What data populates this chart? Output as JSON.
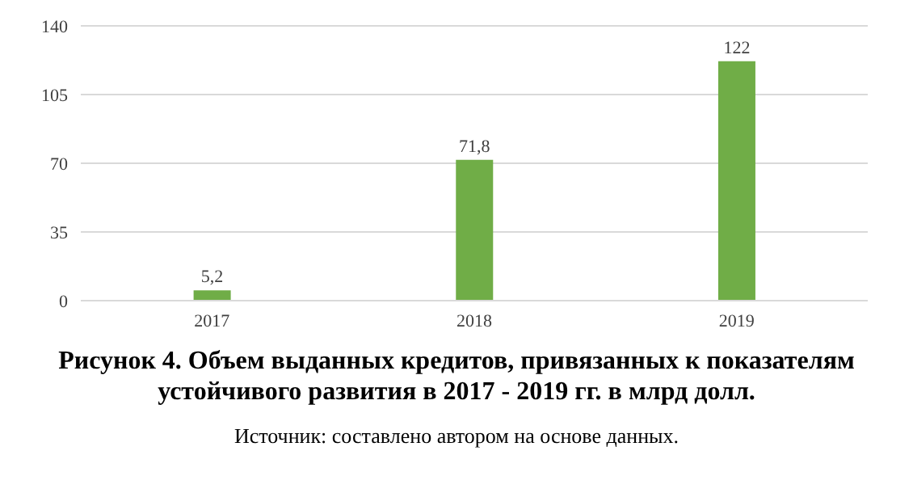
{
  "chart_data": {
    "type": "bar",
    "title": "Рисунок 4. Объем выданных кредитов, привязанных к показателям устойчивого развития в 2017 - 2019 гг. в млрд долл.",
    "categories": [
      "2017",
      "2018",
      "2019"
    ],
    "values": [
      5.2,
      71.8,
      122
    ],
    "value_labels": [
      "5,2",
      "71,8",
      "122"
    ],
    "color": "#70ad47",
    "ylim": [
      0,
      140
    ],
    "yticks": [
      0,
      35,
      70,
      105,
      140
    ],
    "grid": "y",
    "annotations": [
      "Источник: составлено автором на основе данных."
    ]
  }
}
